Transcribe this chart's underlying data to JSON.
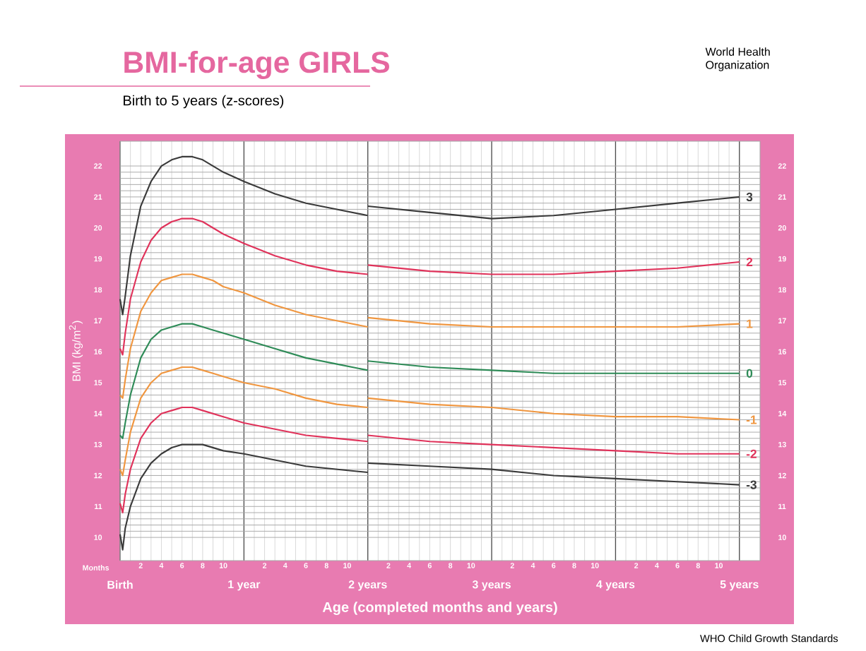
{
  "chart_data": {
    "type": "line",
    "title": "BMI-for-age GIRLS",
    "subtitle": "Birth to 5 years (z-scores)",
    "xlabel": "Age (completed months and years)",
    "ylabel": "BMI (kg/m$^{2}$)",
    "annotations": [
      "Months",
      "World Health Organization",
      "WHO Child Growth Standards",
      "2",
      "4",
      "6",
      "8",
      "10",
      "2",
      "4",
      "6",
      "8",
      "10",
      "2",
      "4",
      "6",
      "8",
      "10",
      "2",
      "4",
      "6",
      "8",
      "10",
      "2",
      "4",
      "6",
      "8",
      "10"
    ],
    "x": [
      0,
      0.0208,
      0.0417,
      0.0833,
      0.1667,
      0.25,
      0.3333,
      0.4167,
      0.5,
      0.5833,
      0.6667,
      0.75,
      0.8333,
      1,
      1.25,
      1.5,
      1.75,
      2,
      2,
      2.5,
      3,
      3.5,
      4,
      4.5,
      5
    ],
    "series": [
      {
        "name": "3",
        "color": "#3a3a3a",
        "values": [
          17.7,
          17.2,
          17.8,
          19.1,
          20.7,
          21.5,
          22.0,
          22.2,
          22.3,
          22.3,
          22.2,
          22.0,
          21.8,
          21.5,
          21.1,
          20.8,
          20.6,
          20.4,
          20.7,
          20.5,
          20.3,
          20.4,
          20.6,
          20.8,
          21.0
        ]
      },
      {
        "name": "2",
        "color": "#e0325a",
        "values": [
          16.1,
          15.9,
          16.6,
          17.7,
          18.9,
          19.6,
          20.0,
          20.2,
          20.3,
          20.3,
          20.2,
          20.0,
          19.8,
          19.5,
          19.1,
          18.8,
          18.6,
          18.5,
          18.8,
          18.6,
          18.5,
          18.5,
          18.6,
          18.7,
          18.9
        ]
      },
      {
        "name": "1",
        "color": "#f0963f",
        "values": [
          14.6,
          14.5,
          15.1,
          16.1,
          17.3,
          17.9,
          18.3,
          18.4,
          18.5,
          18.5,
          18.4,
          18.3,
          18.1,
          17.9,
          17.5,
          17.2,
          17.0,
          16.8,
          17.1,
          16.9,
          16.8,
          16.8,
          16.8,
          16.8,
          16.9
        ]
      },
      {
        "name": "0",
        "color": "#2e8b57",
        "values": [
          13.3,
          13.2,
          13.7,
          14.6,
          15.8,
          16.4,
          16.7,
          16.8,
          16.9,
          16.9,
          16.8,
          16.7,
          16.6,
          16.4,
          16.1,
          15.8,
          15.6,
          15.4,
          15.7,
          15.5,
          15.4,
          15.3,
          15.3,
          15.3,
          15.3
        ]
      },
      {
        "name": "-1",
        "color": "#f0963f",
        "values": [
          12.2,
          12.0,
          12.5,
          13.4,
          14.5,
          15.0,
          15.3,
          15.4,
          15.5,
          15.5,
          15.4,
          15.3,
          15.2,
          15.0,
          14.8,
          14.5,
          14.3,
          14.2,
          14.5,
          14.3,
          14.2,
          14.0,
          13.9,
          13.9,
          13.8
        ]
      },
      {
        "name": "-2",
        "color": "#e0325a",
        "values": [
          11.1,
          10.8,
          11.4,
          12.2,
          13.2,
          13.7,
          14.0,
          14.1,
          14.2,
          14.2,
          14.1,
          14.0,
          13.9,
          13.7,
          13.5,
          13.3,
          13.2,
          13.1,
          13.3,
          13.1,
          13.0,
          12.9,
          12.8,
          12.7,
          12.7
        ]
      },
      {
        "name": "-3",
        "color": "#3a3a3a",
        "values": [
          10.1,
          9.6,
          10.3,
          11.0,
          11.9,
          12.4,
          12.7,
          12.9,
          13.0,
          13.0,
          13.0,
          12.9,
          12.8,
          12.7,
          12.5,
          12.3,
          12.2,
          12.1,
          12.4,
          12.3,
          12.2,
          12.0,
          11.9,
          11.8,
          11.7
        ]
      }
    ],
    "xlim": [
      0,
      5.1667
    ],
    "ylim": [
      9.25,
      22.8
    ],
    "y2lim": [
      9.25,
      22.8
    ],
    "xticks": [
      {
        "value": 0,
        "label": "Birth"
      },
      {
        "value": 1,
        "label": "1 year"
      },
      {
        "value": 2,
        "label": "2 years"
      },
      {
        "value": 3,
        "label": "3 years"
      },
      {
        "value": 4,
        "label": "4 years"
      },
      {
        "value": 5,
        "label": "5 years"
      }
    ],
    "yticks": [
      10,
      11,
      12,
      13,
      14,
      15,
      16,
      17,
      18,
      19,
      20,
      21,
      22
    ],
    "y2ticks": [
      10,
      11,
      12,
      13,
      14,
      15,
      16,
      17,
      18,
      19,
      20,
      21,
      22
    ],
    "grid": true,
    "marker": "none",
    "line_style": "solid"
  }
}
